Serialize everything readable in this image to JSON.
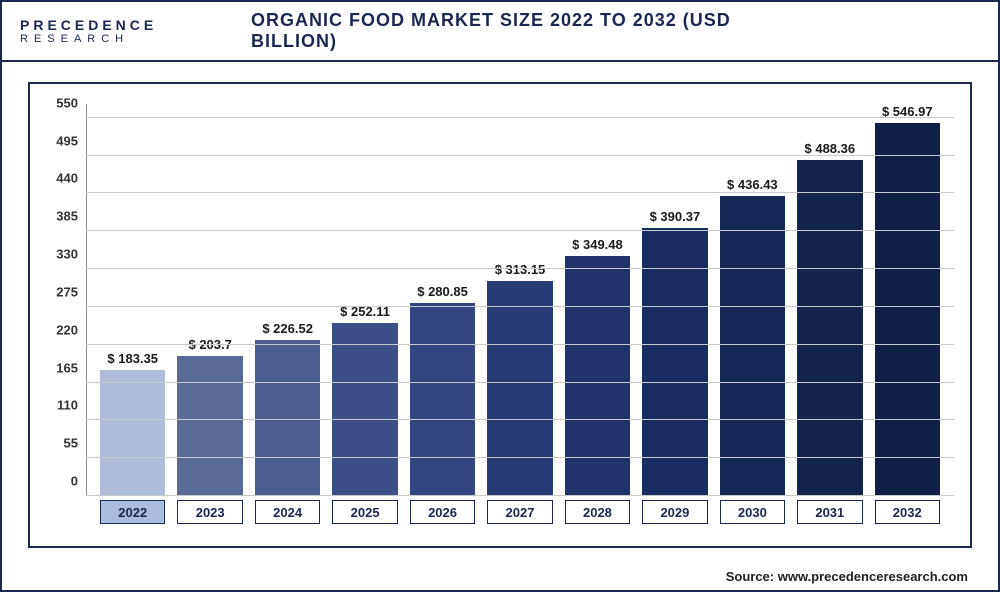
{
  "logo": {
    "top": "PRECEDENCE",
    "bottom": "RESEARCH"
  },
  "title": {
    "text": "ORGANIC FOOD MARKET SIZE 2022 TO 2032 (USD BILLION)",
    "fontsize": 18
  },
  "chart": {
    "type": "bar",
    "ylim": [
      0,
      570
    ],
    "yticks": [
      0,
      55,
      110,
      165,
      220,
      275,
      330,
      385,
      440,
      495,
      550
    ],
    "grid_color": "#c9c9c9",
    "background_color": "#ffffff",
    "bar_border": "#1a2752",
    "categories": [
      "2022",
      "2023",
      "2024",
      "2025",
      "2026",
      "2027",
      "2028",
      "2029",
      "2030",
      "2031",
      "2032"
    ],
    "values": [
      183.35,
      203.7,
      226.52,
      252.11,
      280.85,
      313.15,
      349.48,
      390.37,
      436.43,
      488.36,
      546.97
    ],
    "labels": [
      "$ 183.35",
      "$ 203.7",
      "$ 226.52",
      "$ 252.11",
      "$ 280.85",
      "$ 313.15",
      "$ 349.48",
      "$ 390.37",
      "$ 436.43",
      "$ 488.36",
      "$ 546.97"
    ],
    "bar_colors": [
      "#aebbd9",
      "#5a6a96",
      "#4b5c8e",
      "#3d4f87",
      "#31457e",
      "#273d76",
      "#20346b",
      "#1a2d61",
      "#162856",
      "#12234c",
      "#0f1f45"
    ],
    "highlight_index": 0,
    "label_fontsize": 13,
    "label_color": "#1a1a1a"
  },
  "source": "Source: www.precedenceresearch.com"
}
